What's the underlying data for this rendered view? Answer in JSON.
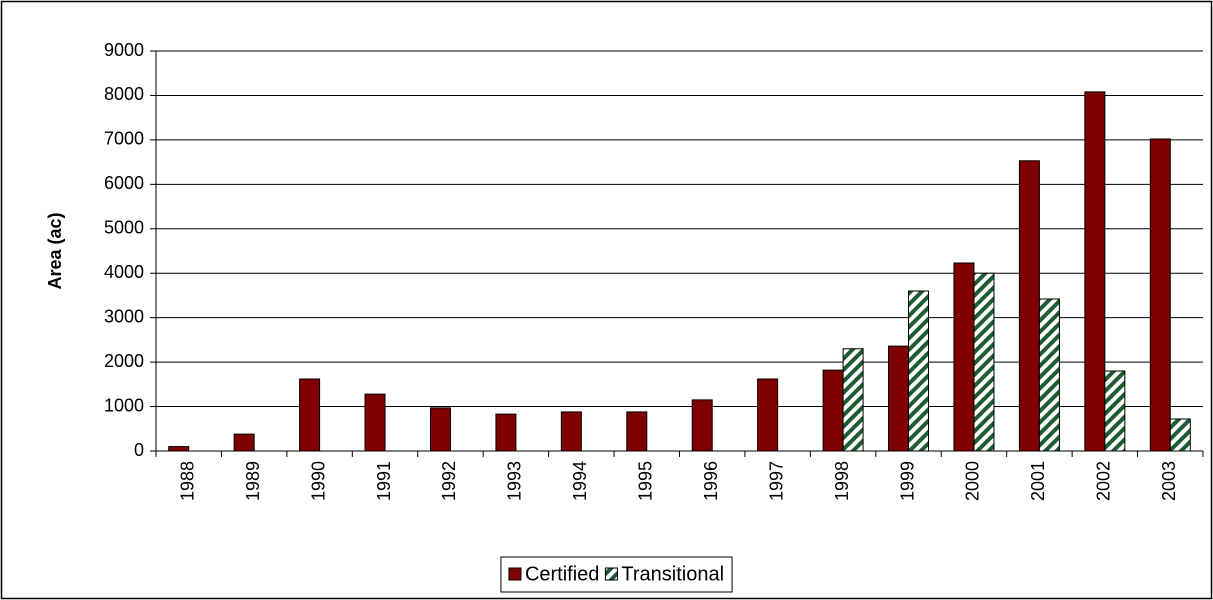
{
  "chart_data": {
    "type": "bar",
    "y_label": "Area (ac)",
    "categories": [
      "1988",
      "1989",
      "1990",
      "1991",
      "1992",
      "1993",
      "1994",
      "1995",
      "1996",
      "1997",
      "1998",
      "1999",
      "2000",
      "2001",
      "2002",
      "2003"
    ],
    "series": [
      {
        "name": "Certified",
        "color": "#800000",
        "fill_style": "solid",
        "values": [
          100,
          380,
          1620,
          1280,
          970,
          830,
          880,
          880,
          1150,
          1620,
          1820,
          2360,
          4230,
          6530,
          8080,
          7020
        ]
      },
      {
        "name": "Transitional",
        "color": "#1e5a32",
        "fill_style": "hatch",
        "values": [
          null,
          null,
          null,
          null,
          null,
          null,
          null,
          null,
          null,
          null,
          2300,
          3600,
          4000,
          3420,
          1800,
          720
        ]
      }
    ],
    "ylim": [
      0,
      9000
    ],
    "yticks": [
      0,
      1000,
      2000,
      3000,
      4000,
      5000,
      6000,
      7000,
      8000,
      9000
    ],
    "grid": true,
    "legend": "bottom"
  }
}
